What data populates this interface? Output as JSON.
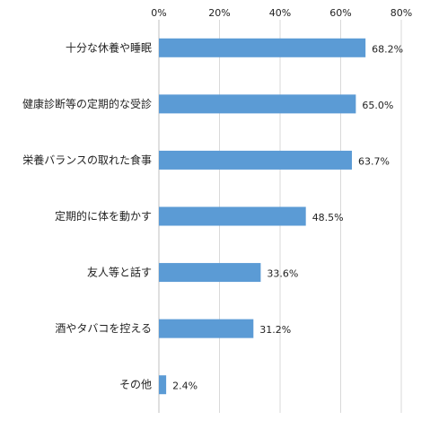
{
  "chart_data": {
    "type": "bar",
    "orientation": "horizontal",
    "categories": [
      "十分な休養や睡眠",
      "健康診断等の定期的な受診",
      "栄養バランスの取れた食事",
      "定期的に体を動かす",
      "友人等と話す",
      "酒やタバコを控える",
      "その他"
    ],
    "values": [
      68.2,
      65.0,
      63.7,
      48.5,
      33.6,
      31.2,
      2.4
    ],
    "data_labels": [
      "68.2%",
      "65.0%",
      "63.7%",
      "48.5%",
      "33.6%",
      "31.2%",
      "2.4%"
    ],
    "xlim": [
      0,
      80
    ],
    "x_ticks": [
      0,
      20,
      40,
      60,
      80
    ],
    "x_tick_labels": [
      "0%",
      "20%",
      "40%",
      "60%",
      "80%"
    ],
    "x_axis_position": "top",
    "grid": true,
    "bar_color": "#5b9bd5",
    "grid_color": "#d9d9d9"
  }
}
